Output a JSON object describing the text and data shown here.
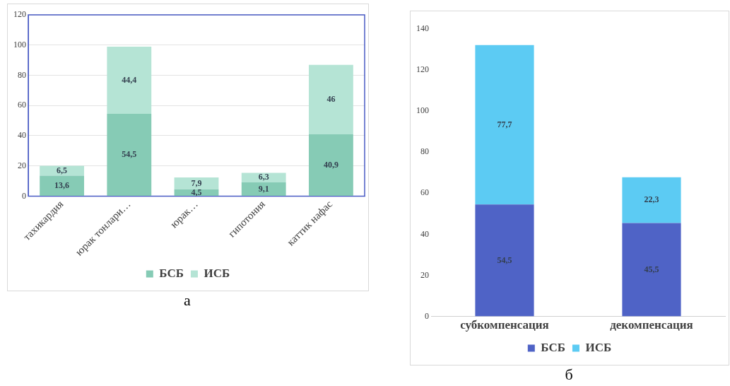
{
  "chart_data": [
    {
      "type": "bar",
      "stacked": true,
      "categories": [
        "тахикардия",
        "юрак тонлари…",
        "юрак…",
        "гипотония",
        "каттик нафас"
      ],
      "series": [
        {
          "name": "БСБ",
          "color": "#86cbb5",
          "values": [
            13.6,
            54.5,
            4.5,
            9.1,
            40.9
          ],
          "value_labels": [
            "13,6",
            "54,5",
            "4,5",
            "9,1",
            "40,9"
          ]
        },
        {
          "name": "ИСБ",
          "color": "#b5e4d5",
          "values": [
            6.5,
            44.4,
            7.9,
            6.3,
            46
          ],
          "value_labels": [
            "6,5",
            "44,4",
            "7,9",
            "6,3",
            "46"
          ]
        }
      ],
      "ylim": [
        0,
        120
      ],
      "yticks": [
        0,
        20,
        40,
        60,
        80,
        100,
        120
      ],
      "grid": "y",
      "legend": "bottom",
      "annotations": [
        "а"
      ]
    },
    {
      "type": "bar",
      "stacked": true,
      "categories": [
        "субкомпенсация",
        "декомпенсация"
      ],
      "series": [
        {
          "name": "БСБ",
          "color": "#4f63c6",
          "values": [
            54.5,
            45.5
          ],
          "value_labels": [
            "54,5",
            "45,5"
          ]
        },
        {
          "name": "ИСБ",
          "color": "#5ccbf3",
          "values": [
            77.7,
            22.3
          ],
          "value_labels": [
            "77,7",
            "22,3"
          ]
        }
      ],
      "ylim": [
        0,
        140
      ],
      "yticks": [
        0,
        20,
        40,
        60,
        80,
        100,
        120,
        140
      ],
      "grid": false,
      "legend": "bottom",
      "annotations": [
        "б"
      ]
    }
  ]
}
